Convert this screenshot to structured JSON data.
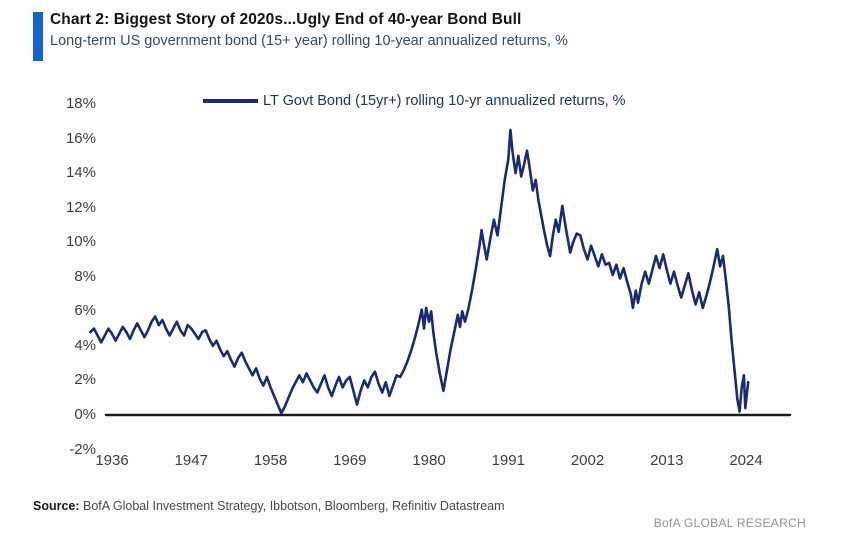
{
  "header": {
    "title": "Chart 2: Biggest Story of 2020s...Ugly End of 40-year Bond Bull",
    "subtitle": "Long-term US government bond (15+ year) rolling 10-year annualized returns, %",
    "accent_color": "#1565c8"
  },
  "footer": {
    "source_label": "Source:",
    "source_text": " BofA Global Investment Strategy, Ibbotson, Bloomberg, Refinitiv Datastream",
    "brand": "BofA GLOBAL RESEARCH"
  },
  "chart_data": {
    "type": "line",
    "title": "Chart 2: Biggest Story of 2020s...Ugly End of 40-year Bond Bull",
    "subtitle": "Long-term US government bond (15+ year) rolling 10-year annualized returns, %",
    "legend": "LT Govt Bond (15yr+) rolling 10-yr annualized returns, %",
    "legend_position": "top-inside",
    "grid": false,
    "xlabel": "",
    "ylabel": "",
    "ylim": [
      -2,
      18
    ],
    "xlim": [
      1933,
      2030
    ],
    "y_ticks": [
      18,
      16,
      14,
      12,
      10,
      8,
      6,
      4,
      2,
      0,
      -2
    ],
    "y_tick_suffix": "%",
    "x_ticks": [
      1936,
      1947,
      1958,
      1969,
      1980,
      1991,
      2002,
      2013,
      2024
    ],
    "axis_color": "#1a1a1a",
    "tick_color": "#3e3e3e",
    "series": [
      {
        "name": "LT Govt Bond (15yr+) rolling 10-yr annualized returns, %",
        "color": "#1b2c6e",
        "points": [
          [
            1933.0,
            4.8
          ],
          [
            1933.5,
            5.0
          ],
          [
            1934.0,
            4.6
          ],
          [
            1934.5,
            4.2
          ],
          [
            1935.0,
            4.6
          ],
          [
            1935.5,
            5.0
          ],
          [
            1936.0,
            4.7
          ],
          [
            1936.5,
            4.3
          ],
          [
            1937.0,
            4.7
          ],
          [
            1937.5,
            5.1
          ],
          [
            1938.0,
            4.8
          ],
          [
            1938.5,
            4.4
          ],
          [
            1939.0,
            4.9
          ],
          [
            1939.5,
            5.3
          ],
          [
            1940.0,
            4.9
          ],
          [
            1940.5,
            4.5
          ],
          [
            1941.0,
            4.9
          ],
          [
            1941.5,
            5.4
          ],
          [
            1942.0,
            5.7
          ],
          [
            1942.5,
            5.2
          ],
          [
            1943.0,
            5.5
          ],
          [
            1943.5,
            5.0
          ],
          [
            1944.0,
            4.6
          ],
          [
            1944.5,
            5.0
          ],
          [
            1945.0,
            5.4
          ],
          [
            1945.5,
            4.9
          ],
          [
            1946.0,
            4.6
          ],
          [
            1946.5,
            5.2
          ],
          [
            1947.0,
            5.0
          ],
          [
            1947.5,
            4.7
          ],
          [
            1948.0,
            4.4
          ],
          [
            1948.5,
            4.8
          ],
          [
            1949.0,
            4.9
          ],
          [
            1949.5,
            4.4
          ],
          [
            1950.0,
            4.0
          ],
          [
            1950.5,
            4.3
          ],
          [
            1951.0,
            3.8
          ],
          [
            1951.5,
            3.4
          ],
          [
            1952.0,
            3.7
          ],
          [
            1952.5,
            3.2
          ],
          [
            1953.0,
            2.8
          ],
          [
            1953.5,
            3.3
          ],
          [
            1954.0,
            3.6
          ],
          [
            1954.5,
            3.1
          ],
          [
            1955.0,
            2.7
          ],
          [
            1955.5,
            2.3
          ],
          [
            1956.0,
            2.7
          ],
          [
            1956.5,
            2.1
          ],
          [
            1957.0,
            1.7
          ],
          [
            1957.5,
            2.2
          ],
          [
            1958.0,
            1.6
          ],
          [
            1958.5,
            1.1
          ],
          [
            1959.0,
            0.6
          ],
          [
            1959.5,
            0.1
          ],
          [
            1960.0,
            0.5
          ],
          [
            1960.5,
            1.0
          ],
          [
            1961.0,
            1.5
          ],
          [
            1961.5,
            1.9
          ],
          [
            1962.0,
            2.3
          ],
          [
            1962.5,
            1.9
          ],
          [
            1963.0,
            2.4
          ],
          [
            1963.5,
            2.0
          ],
          [
            1964.0,
            1.6
          ],
          [
            1964.5,
            1.3
          ],
          [
            1965.0,
            1.8
          ],
          [
            1965.5,
            2.3
          ],
          [
            1966.0,
            1.6
          ],
          [
            1966.5,
            1.1
          ],
          [
            1967.0,
            1.7
          ],
          [
            1967.5,
            2.2
          ],
          [
            1968.0,
            1.6
          ],
          [
            1968.5,
            2.0
          ],
          [
            1969.0,
            2.2
          ],
          [
            1969.5,
            1.4
          ],
          [
            1970.0,
            0.6
          ],
          [
            1970.5,
            1.4
          ],
          [
            1971.0,
            2.0
          ],
          [
            1971.5,
            1.6
          ],
          [
            1972.0,
            2.2
          ],
          [
            1972.5,
            2.5
          ],
          [
            1973.0,
            1.8
          ],
          [
            1973.5,
            1.3
          ],
          [
            1974.0,
            1.9
          ],
          [
            1974.5,
            1.1
          ],
          [
            1975.0,
            1.7
          ],
          [
            1975.5,
            2.3
          ],
          [
            1976.0,
            2.2
          ],
          [
            1976.5,
            2.6
          ],
          [
            1977.0,
            3.1
          ],
          [
            1977.5,
            3.7
          ],
          [
            1978.0,
            4.4
          ],
          [
            1978.5,
            5.2
          ],
          [
            1979.0,
            6.1
          ],
          [
            1979.3,
            5.0
          ],
          [
            1979.6,
            6.2
          ],
          [
            1980.0,
            5.4
          ],
          [
            1980.3,
            6.0
          ],
          [
            1980.6,
            4.8
          ],
          [
            1981.0,
            3.6
          ],
          [
            1981.5,
            2.4
          ],
          [
            1982.0,
            1.4
          ],
          [
            1982.5,
            2.6
          ],
          [
            1983.0,
            3.8
          ],
          [
            1983.5,
            4.8
          ],
          [
            1984.0,
            5.8
          ],
          [
            1984.3,
            5.1
          ],
          [
            1984.6,
            6.0
          ],
          [
            1985.0,
            5.4
          ],
          [
            1985.5,
            6.2
          ],
          [
            1986.0,
            7.3
          ],
          [
            1986.5,
            8.5
          ],
          [
            1987.0,
            9.8
          ],
          [
            1987.3,
            10.7
          ],
          [
            1987.6,
            9.9
          ],
          [
            1988.0,
            9.0
          ],
          [
            1988.5,
            10.2
          ],
          [
            1989.0,
            11.3
          ],
          [
            1989.5,
            10.4
          ],
          [
            1990.0,
            12.0
          ],
          [
            1990.5,
            13.6
          ],
          [
            1991.0,
            14.8
          ],
          [
            1991.3,
            16.5
          ],
          [
            1991.6,
            15.2
          ],
          [
            1992.0,
            14.0
          ],
          [
            1992.4,
            15.0
          ],
          [
            1992.8,
            13.8
          ],
          [
            1993.2,
            14.5
          ],
          [
            1993.6,
            15.3
          ],
          [
            1994.0,
            14.2
          ],
          [
            1994.4,
            13.0
          ],
          [
            1994.8,
            13.6
          ],
          [
            1995.2,
            12.4
          ],
          [
            1995.6,
            11.5
          ],
          [
            1996.0,
            10.6
          ],
          [
            1996.4,
            9.8
          ],
          [
            1996.8,
            9.2
          ],
          [
            1997.2,
            10.4
          ],
          [
            1997.6,
            11.3
          ],
          [
            1998.0,
            10.6
          ],
          [
            1998.5,
            12.1
          ],
          [
            1999.0,
            10.8
          ],
          [
            1999.6,
            9.4
          ],
          [
            2000.0,
            10.0
          ],
          [
            2000.5,
            10.5
          ],
          [
            2001.0,
            10.4
          ],
          [
            2001.5,
            9.6
          ],
          [
            2002.0,
            9.0
          ],
          [
            2002.5,
            9.8
          ],
          [
            2003.0,
            9.2
          ],
          [
            2003.5,
            8.6
          ],
          [
            2004.0,
            9.3
          ],
          [
            2004.5,
            8.7
          ],
          [
            2005.0,
            8.8
          ],
          [
            2005.5,
            8.1
          ],
          [
            2006.0,
            8.7
          ],
          [
            2006.5,
            7.9
          ],
          [
            2007.0,
            8.5
          ],
          [
            2007.5,
            7.7
          ],
          [
            2008.0,
            7.0
          ],
          [
            2008.3,
            6.2
          ],
          [
            2008.7,
            7.2
          ],
          [
            2009.0,
            6.5
          ],
          [
            2009.5,
            7.6
          ],
          [
            2010.0,
            8.3
          ],
          [
            2010.5,
            7.6
          ],
          [
            2011.0,
            8.4
          ],
          [
            2011.5,
            9.2
          ],
          [
            2012.0,
            8.5
          ],
          [
            2012.5,
            9.3
          ],
          [
            2013.0,
            8.4
          ],
          [
            2013.5,
            7.6
          ],
          [
            2014.0,
            8.3
          ],
          [
            2014.5,
            7.5
          ],
          [
            2015.0,
            6.8
          ],
          [
            2015.5,
            7.5
          ],
          [
            2016.0,
            8.2
          ],
          [
            2016.5,
            7.2
          ],
          [
            2017.0,
            6.4
          ],
          [
            2017.5,
            7.1
          ],
          [
            2018.0,
            6.2
          ],
          [
            2018.5,
            6.9
          ],
          [
            2019.0,
            7.7
          ],
          [
            2019.5,
            8.6
          ],
          [
            2020.0,
            9.6
          ],
          [
            2020.4,
            8.6
          ],
          [
            2020.8,
            9.2
          ],
          [
            2021.2,
            7.8
          ],
          [
            2021.6,
            6.3
          ],
          [
            2022.0,
            4.3
          ],
          [
            2022.4,
            2.6
          ],
          [
            2022.8,
            0.9
          ],
          [
            2023.1,
            0.2
          ],
          [
            2023.4,
            1.6
          ],
          [
            2023.7,
            2.3
          ],
          [
            2023.9,
            0.4
          ],
          [
            2024.1,
            1.2
          ],
          [
            2024.3,
            1.9
          ]
        ]
      }
    ]
  }
}
